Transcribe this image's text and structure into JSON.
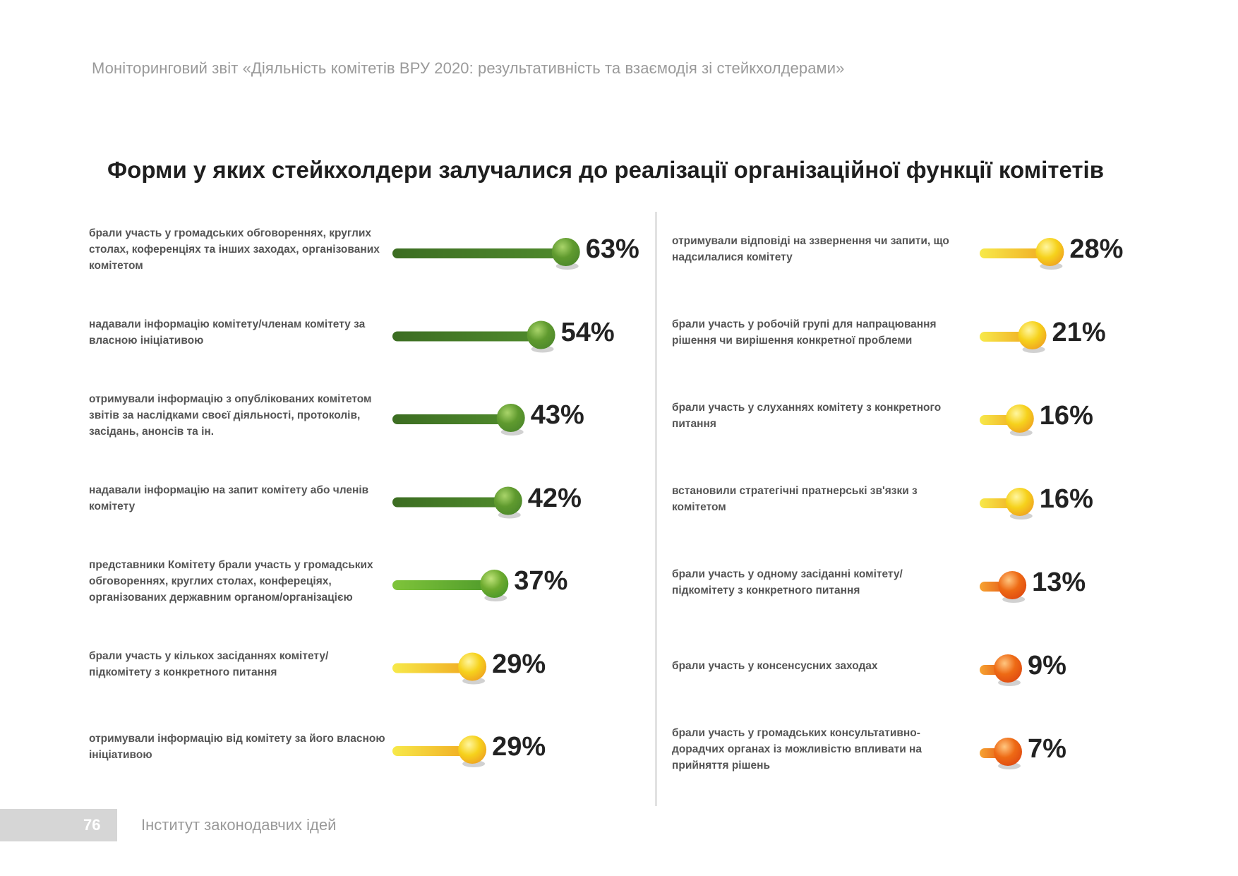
{
  "header": {
    "running_title": "Моніторинговий звіт «Діяльність комітетів ВРУ 2020: результативність та взаємодія зі стейкхолдерами»"
  },
  "footer": {
    "page_number": "76",
    "organization": "Інститут законодавчих ідей"
  },
  "chart_data": {
    "type": "bar",
    "title": "Форми у яких стейкхолдери залучалися до реалізації організаційної функції комітетів",
    "unit": "%",
    "columns": [
      {
        "items": [
          {
            "label": "брали участь у громадських обговореннях, круглих столах, коференціях та інших заходах, організованих комітетом",
            "value": 63,
            "value_text": "63%",
            "color": "dark-green"
          },
          {
            "label": "надавали інформацію комітету/членам комітету за власною ініціативою",
            "value": 54,
            "value_text": "54%",
            "color": "dark-green"
          },
          {
            "label": "отримували інформацію з опублікованих комітетом звітів за наслідками своєї діяльності, протоколів, засідань, анонсів та ін.",
            "value": 43,
            "value_text": "43%",
            "color": "dark-green"
          },
          {
            "label": "надавали інформацію на запит комітету або членів комітету",
            "value": 42,
            "value_text": "42%",
            "color": "dark-green"
          },
          {
            "label": "представники Комітету брали участь у громадських обговореннях, круглих столах, конфереціях, організованих державним органом/організацією",
            "value": 37,
            "value_text": "37%",
            "color": "light-green"
          },
          {
            "label": "брали участь у кількох засіданнях комітету/ підкомітету з конкретного питання",
            "value": 29,
            "value_text": "29%",
            "color": "yellow"
          },
          {
            "label": "отримували інформацію від комітету за його власною ініціативою",
            "value": 29,
            "value_text": "29%",
            "color": "yellow"
          }
        ]
      },
      {
        "items": [
          {
            "label": "отримували відповіді на ззвернення чи запити, що надсилалися комітету",
            "value": 28,
            "value_text": "28%",
            "color": "yellow"
          },
          {
            "label": "брали участь у робочій групі для напрацювання рішення чи вирішення конкретної проблеми",
            "value": 21,
            "value_text": "21%",
            "color": "yellow"
          },
          {
            "label": "брали участь у слуханнях комітету з конкретного питання",
            "value": 16,
            "value_text": "16%",
            "color": "yellow"
          },
          {
            "label": "встановили стратегічні пратнерські зв'язки з комітетом",
            "value": 16,
            "value_text": "16%",
            "color": "yellow"
          },
          {
            "label": "брали участь у одному засіданні комітету/ підкомітету з конкретного питання",
            "value": 13,
            "value_text": "13%",
            "color": "orange"
          },
          {
            "label": "брали участь у консенсусних заходах",
            "value": 9,
            "value_text": "9%",
            "color": "orange"
          },
          {
            "label": "брали участь у громадських консультативно-дорадчих органах із можливістю впливати на прийняття рішень",
            "value": 7,
            "value_text": "7%",
            "color": "orange"
          }
        ]
      }
    ],
    "palette": {
      "dark-green": {
        "start": "#3c6d22",
        "end": "#4f8a2c",
        "ball": "#5f9a2e",
        "ball_light": "#a9d46a"
      },
      "light-green": {
        "start": "#7fc43a",
        "end": "#4e9a2a",
        "ball": "#6eab2f",
        "ball_light": "#bfe37a"
      },
      "yellow": {
        "start": "#f7e94a",
        "end": "#f0a820",
        "ball": "#f6d21c",
        "ball_light": "#fff6a0"
      },
      "orange": {
        "start": "#f7a432",
        "end": "#e14e12",
        "ball": "#ee6a14",
        "ball_light": "#ffc680"
      }
    }
  }
}
